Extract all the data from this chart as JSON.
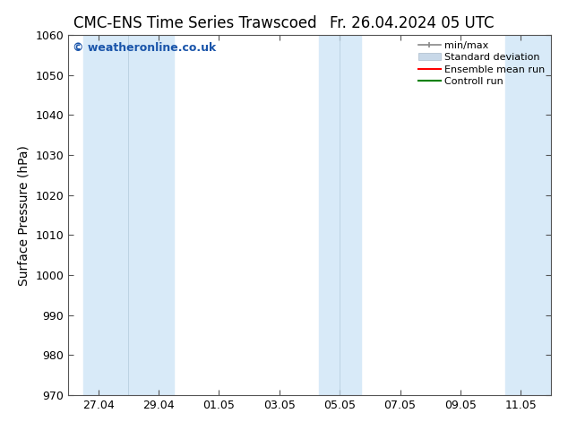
{
  "title_left": "CMC-ENS Time Series Trawscoed",
  "title_right": "Fr. 26.04.2024 05 UTC",
  "ylabel": "Surface Pressure (hPa)",
  "ylim": [
    970,
    1060
  ],
  "yticks": [
    970,
    980,
    990,
    1000,
    1010,
    1020,
    1030,
    1040,
    1050,
    1060
  ],
  "background_color": "#ffffff",
  "plot_bg_color": "#ffffff",
  "watermark": "© weatheronline.co.uk",
  "watermark_color": "#1a55aa",
  "band_color": "#d8eaf8",
  "legend_items": [
    {
      "label": "min/max",
      "color": "#a0a8b0",
      "type": "errorbar"
    },
    {
      "label": "Standard deviation",
      "color": "#c8d8e8",
      "type": "bar"
    },
    {
      "label": "Ensemble mean run",
      "color": "#ff0000",
      "type": "line"
    },
    {
      "label": "Controll run",
      "color": "#008000",
      "type": "line"
    }
  ],
  "x_tick_labels": [
    "27.04",
    "29.04",
    "01.05",
    "03.05",
    "05.05",
    "07.05",
    "09.05",
    "11.05"
  ],
  "x_tick_positions": [
    1,
    3,
    5,
    7,
    9,
    11,
    13,
    15
  ],
  "x_lim": [
    0,
    16
  ],
  "band1_x0": 0.5,
  "band1_x1": 3.5,
  "band2_x0": 8.3,
  "band2_x1": 9.7,
  "band3_x0": 14.5,
  "band3_x1": 16.0,
  "title_fontsize": 12,
  "axis_label_fontsize": 10,
  "tick_fontsize": 9,
  "watermark_fontsize": 9,
  "legend_fontsize": 8
}
